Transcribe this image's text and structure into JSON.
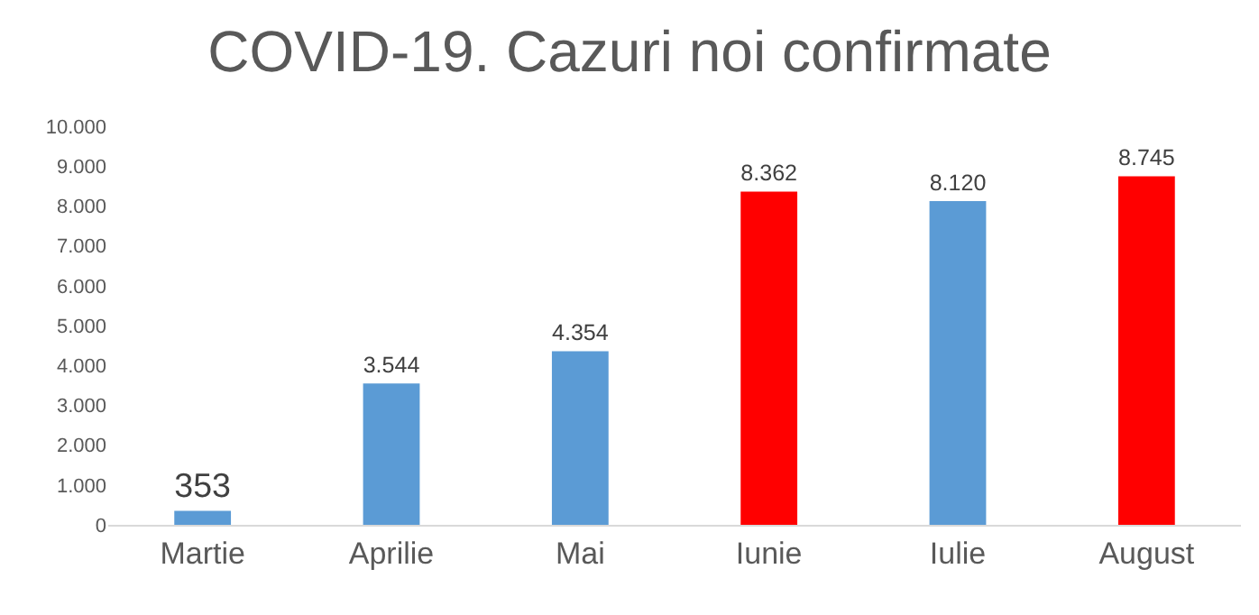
{
  "chart_data": {
    "type": "bar",
    "title": "COVID-19. Cazuri noi confirmate",
    "categories": [
      "Martie",
      "Aprilie",
      "Mai",
      "Iunie",
      "Iulie",
      "August"
    ],
    "values": [
      353,
      3544,
      4354,
      8362,
      8120,
      8745
    ],
    "colors": [
      "#5b9bd5",
      "#5b9bd5",
      "#5b9bd5",
      "#ff0000",
      "#5b9bd5",
      "#ff0000"
    ],
    "value_labels": [
      "353",
      "3.544",
      "4.354",
      "8.362",
      "8.120",
      "8.745"
    ],
    "ylim": [
      0,
      10000
    ],
    "yticks": [
      {
        "value": 0,
        "label": "0"
      },
      {
        "value": 1000,
        "label": "1.000"
      },
      {
        "value": 2000,
        "label": "2.000"
      },
      {
        "value": 3000,
        "label": "3.000"
      },
      {
        "value": 4000,
        "label": "4.000"
      },
      {
        "value": 5000,
        "label": "5.000"
      },
      {
        "value": 6000,
        "label": "6.000"
      },
      {
        "value": 7000,
        "label": "7.000"
      },
      {
        "value": 8000,
        "label": "8.000"
      },
      {
        "value": 9000,
        "label": "9.000"
      },
      {
        "value": 10000,
        "label": "10.000"
      }
    ],
    "grid": false,
    "legend": false
  }
}
